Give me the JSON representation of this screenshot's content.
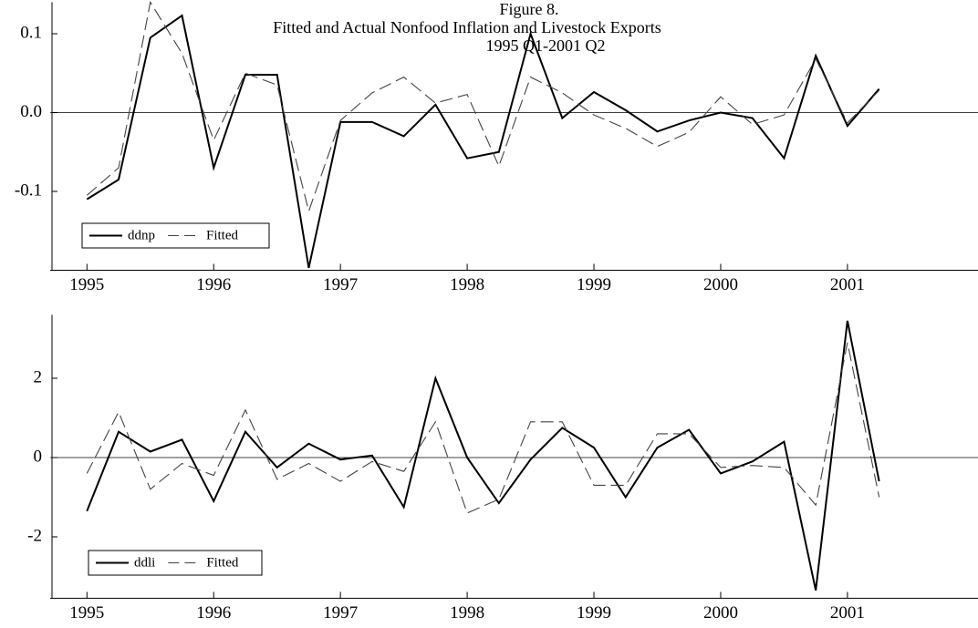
{
  "chart_data": [
    {
      "type": "line",
      "title": "Figure 8.",
      "subtitle": [
        "Fitted and Actual Nonfood Inflation and Livestock Exports",
        "1995 Q1-2001 Q2"
      ],
      "x": [
        1995,
        1995.25,
        1995.5,
        1995.75,
        1996,
        1996.25,
        1996.5,
        1996.75,
        1997,
        1997.25,
        1997.5,
        1997.75,
        1998,
        1998.25,
        1998.5,
        1998.75,
        1999,
        1999.25,
        1999.5,
        1999.75,
        2000,
        2000.25,
        2000.5,
        2000.75,
        2001,
        2001.25
      ],
      "series": [
        {
          "name": "ddnp",
          "color": "#000000",
          "line_style": "solid",
          "values": [
            -0.11,
            -0.085,
            0.095,
            0.123,
            -0.07,
            0.048,
            0.048,
            -0.197,
            -0.012,
            -0.012,
            -0.03,
            0.01,
            -0.058,
            -0.05,
            0.1,
            -0.007,
            0.026,
            0.003,
            -0.024,
            -0.01,
            0.0,
            -0.007,
            -0.058,
            0.072,
            -0.017,
            0.03
          ]
        },
        {
          "name": "Fitted",
          "color": "#444444",
          "line_style": "dashed",
          "values": [
            -0.105,
            -0.07,
            0.14,
            0.075,
            -0.035,
            0.05,
            0.035,
            -0.125,
            -0.01,
            0.025,
            0.045,
            0.012,
            0.023,
            -0.068,
            0.045,
            0.025,
            -0.003,
            -0.02,
            -0.043,
            -0.025,
            0.02,
            -0.015,
            -0.003,
            0.068,
            -0.013,
            0.028
          ]
        }
      ],
      "xlim": [
        1994.71,
        2002.03
      ],
      "xticks": [
        1995,
        1996,
        1997,
        1998,
        1999,
        2000,
        2001
      ],
      "ylim": [
        -0.2,
        0.14
      ],
      "yticks": [
        0.1,
        {
          "value": 0,
          "label": "0.0"
        },
        -0.1
      ],
      "zero_line": true,
      "legend": "lower left"
    },
    {
      "type": "line",
      "x": [
        1995,
        1995.25,
        1995.5,
        1995.75,
        1996,
        1996.25,
        1996.5,
        1996.75,
        1997,
        1997.25,
        1997.5,
        1997.75,
        1998,
        1998.25,
        1998.5,
        1998.75,
        1999,
        1999.25,
        1999.5,
        1999.75,
        2000,
        2000.25,
        2000.5,
        2000.75,
        2001,
        2001.25
      ],
      "series": [
        {
          "name": "ddli",
          "color": "#000000",
          "line_style": "solid",
          "values": [
            -1.35,
            0.65,
            0.15,
            0.45,
            -1.1,
            0.65,
            -0.25,
            0.35,
            -0.05,
            0.05,
            -1.25,
            2.0,
            0.0,
            -1.15,
            -0.05,
            0.75,
            0.25,
            -1.0,
            0.25,
            0.7,
            -0.4,
            -0.1,
            0.4,
            -3.35,
            3.45,
            -0.6
          ]
        },
        {
          "name": "Fitted",
          "color": "#444444",
          "line_style": "dashed",
          "values": [
            -0.4,
            1.15,
            -0.8,
            -0.15,
            -0.45,
            1.2,
            -0.55,
            -0.15,
            -0.6,
            -0.1,
            -0.35,
            0.9,
            -1.4,
            -1.05,
            0.9,
            0.9,
            -0.7,
            -0.7,
            0.6,
            0.6,
            -0.25,
            -0.2,
            -0.25,
            -1.2,
            2.9,
            -1.0
          ]
        }
      ],
      "xlim": [
        1994.71,
        2002.03
      ],
      "xticks": [
        1995,
        1996,
        1997,
        1998,
        1999,
        2000,
        2001
      ],
      "ylim": [
        -3.55,
        3.6
      ],
      "yticks": [
        2,
        0,
        -2
      ],
      "zero_line": true,
      "legend": "lower left"
    }
  ]
}
